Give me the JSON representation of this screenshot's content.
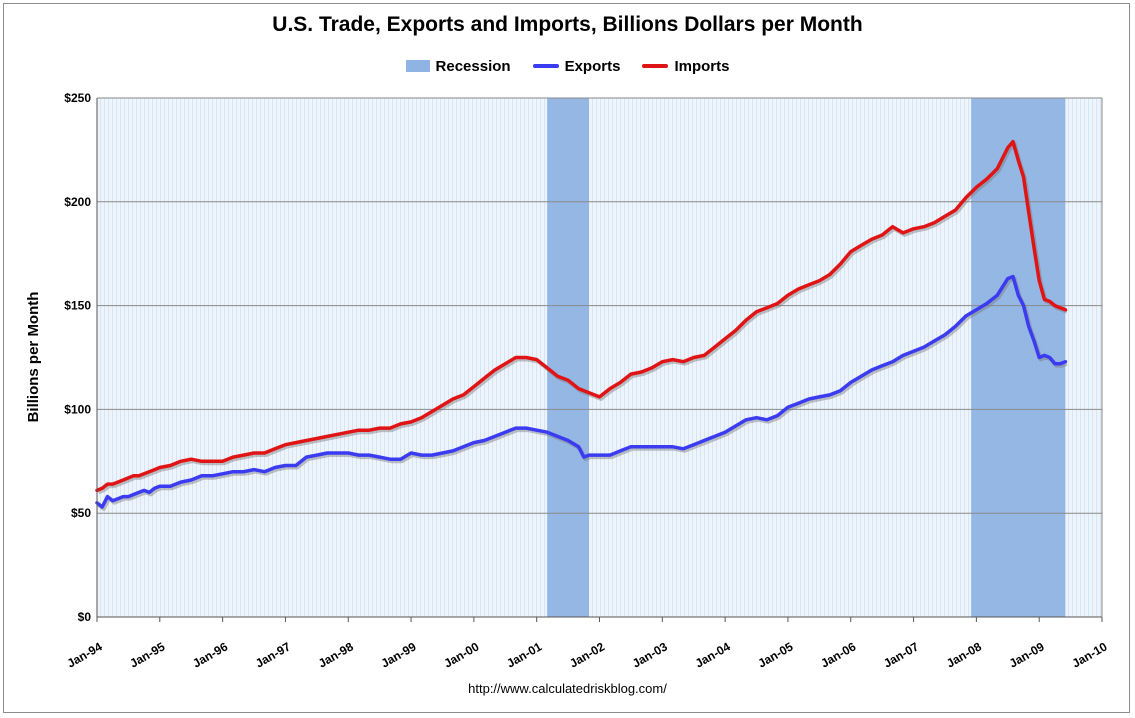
{
  "chart_data": {
    "type": "line",
    "title": "U.S. Trade, Exports and Imports, Billions Dollars per Month",
    "ylabel": "Billions per Month",
    "xlabel": "",
    "ylim": [
      0,
      250
    ],
    "xlim": [
      "1994-01",
      "2010-01"
    ],
    "y_ticks": [
      "$0",
      "$50",
      "$100",
      "$150",
      "$200",
      "$250"
    ],
    "y_tick_values": [
      0,
      50,
      100,
      150,
      200,
      250
    ],
    "x_ticks": [
      "Jan-94",
      "Jan-95",
      "Jan-96",
      "Jan-97",
      "Jan-98",
      "Jan-99",
      "Jan-00",
      "Jan-01",
      "Jan-02",
      "Jan-03",
      "Jan-04",
      "Jan-05",
      "Jan-06",
      "Jan-07",
      "Jan-08",
      "Jan-09",
      "Jan-10"
    ],
    "grid": true,
    "legend_position": "top-center",
    "recessions": [
      {
        "start": "2001-03",
        "end": "2001-11"
      },
      {
        "start": "2007-12",
        "end": "2009-06"
      }
    ],
    "legend": [
      {
        "label": "Recession",
        "kind": "box",
        "color": "#8fb3e3"
      },
      {
        "label": "Exports",
        "kind": "line",
        "color": "#3b3bf2"
      },
      {
        "label": "Imports",
        "kind": "line",
        "color": "#e01414"
      }
    ],
    "series": [
      {
        "name": "Exports",
        "color": "#3b3bf2",
        "points": [
          [
            "1994-01",
            55
          ],
          [
            "1994-02",
            53
          ],
          [
            "1994-03",
            58
          ],
          [
            "1994-04",
            56
          ],
          [
            "1994-05",
            57
          ],
          [
            "1994-06",
            58
          ],
          [
            "1994-07",
            58
          ],
          [
            "1994-08",
            59
          ],
          [
            "1994-09",
            60
          ],
          [
            "1994-10",
            61
          ],
          [
            "1994-11",
            60
          ],
          [
            "1994-12",
            62
          ],
          [
            "1995-01",
            63
          ],
          [
            "1995-03",
            63
          ],
          [
            "1995-05",
            65
          ],
          [
            "1995-07",
            66
          ],
          [
            "1995-09",
            68
          ],
          [
            "1995-11",
            68
          ],
          [
            "1996-01",
            69
          ],
          [
            "1996-03",
            70
          ],
          [
            "1996-05",
            70
          ],
          [
            "1996-07",
            71
          ],
          [
            "1996-09",
            70
          ],
          [
            "1996-11",
            72
          ],
          [
            "1997-01",
            73
          ],
          [
            "1997-03",
            73
          ],
          [
            "1997-05",
            77
          ],
          [
            "1997-07",
            78
          ],
          [
            "1997-09",
            79
          ],
          [
            "1997-11",
            79
          ],
          [
            "1998-01",
            79
          ],
          [
            "1998-03",
            78
          ],
          [
            "1998-05",
            78
          ],
          [
            "1998-07",
            77
          ],
          [
            "1998-09",
            76
          ],
          [
            "1998-11",
            76
          ],
          [
            "1999-01",
            79
          ],
          [
            "1999-03",
            78
          ],
          [
            "1999-05",
            78
          ],
          [
            "1999-07",
            79
          ],
          [
            "1999-09",
            80
          ],
          [
            "1999-11",
            82
          ],
          [
            "2000-01",
            84
          ],
          [
            "2000-03",
            85
          ],
          [
            "2000-05",
            87
          ],
          [
            "2000-07",
            89
          ],
          [
            "2000-09",
            91
          ],
          [
            "2000-11",
            91
          ],
          [
            "2001-01",
            90
          ],
          [
            "2001-03",
            89
          ],
          [
            "2001-05",
            87
          ],
          [
            "2001-07",
            85
          ],
          [
            "2001-09",
            82
          ],
          [
            "2001-10",
            77
          ],
          [
            "2001-11",
            78
          ],
          [
            "2002-01",
            78
          ],
          [
            "2002-03",
            78
          ],
          [
            "2002-05",
            80
          ],
          [
            "2002-07",
            82
          ],
          [
            "2002-09",
            82
          ],
          [
            "2002-11",
            82
          ],
          [
            "2003-01",
            82
          ],
          [
            "2003-03",
            82
          ],
          [
            "2003-05",
            81
          ],
          [
            "2003-07",
            83
          ],
          [
            "2003-09",
            85
          ],
          [
            "2003-11",
            87
          ],
          [
            "2004-01",
            89
          ],
          [
            "2004-03",
            92
          ],
          [
            "2004-05",
            95
          ],
          [
            "2004-07",
            96
          ],
          [
            "2004-09",
            95
          ],
          [
            "2004-11",
            97
          ],
          [
            "2005-01",
            101
          ],
          [
            "2005-03",
            103
          ],
          [
            "2005-05",
            105
          ],
          [
            "2005-07",
            106
          ],
          [
            "2005-09",
            107
          ],
          [
            "2005-11",
            109
          ],
          [
            "2006-01",
            113
          ],
          [
            "2006-03",
            116
          ],
          [
            "2006-05",
            119
          ],
          [
            "2006-07",
            121
          ],
          [
            "2006-09",
            123
          ],
          [
            "2006-11",
            126
          ],
          [
            "2007-01",
            128
          ],
          [
            "2007-03",
            130
          ],
          [
            "2007-05",
            133
          ],
          [
            "2007-07",
            136
          ],
          [
            "2007-09",
            140
          ],
          [
            "2007-11",
            145
          ],
          [
            "2008-01",
            148
          ],
          [
            "2008-03",
            151
          ],
          [
            "2008-05",
            155
          ],
          [
            "2008-07",
            163
          ],
          [
            "2008-08",
            164
          ],
          [
            "2008-09",
            155
          ],
          [
            "2008-10",
            150
          ],
          [
            "2008-11",
            140
          ],
          [
            "2008-12",
            133
          ],
          [
            "2009-01",
            125
          ],
          [
            "2009-02",
            126
          ],
          [
            "2009-03",
            125
          ],
          [
            "2009-04",
            122
          ],
          [
            "2009-05",
            122
          ],
          [
            "2009-06",
            123
          ]
        ]
      },
      {
        "name": "Imports",
        "color": "#e01414",
        "points": [
          [
            "1994-01",
            61
          ],
          [
            "1994-02",
            62
          ],
          [
            "1994-03",
            64
          ],
          [
            "1994-04",
            64
          ],
          [
            "1994-05",
            65
          ],
          [
            "1994-06",
            66
          ],
          [
            "1994-07",
            67
          ],
          [
            "1994-08",
            68
          ],
          [
            "1994-09",
            68
          ],
          [
            "1994-10",
            69
          ],
          [
            "1994-11",
            70
          ],
          [
            "1994-12",
            71
          ],
          [
            "1995-01",
            72
          ],
          [
            "1995-03",
            73
          ],
          [
            "1995-05",
            75
          ],
          [
            "1995-07",
            76
          ],
          [
            "1995-09",
            75
          ],
          [
            "1995-11",
            75
          ],
          [
            "1996-01",
            75
          ],
          [
            "1996-03",
            77
          ],
          [
            "1996-05",
            78
          ],
          [
            "1996-07",
            79
          ],
          [
            "1996-09",
            79
          ],
          [
            "1996-11",
            81
          ],
          [
            "1997-01",
            83
          ],
          [
            "1997-03",
            84
          ],
          [
            "1997-05",
            85
          ],
          [
            "1997-07",
            86
          ],
          [
            "1997-09",
            87
          ],
          [
            "1997-11",
            88
          ],
          [
            "1998-01",
            89
          ],
          [
            "1998-03",
            90
          ],
          [
            "1998-05",
            90
          ],
          [
            "1998-07",
            91
          ],
          [
            "1998-09",
            91
          ],
          [
            "1998-11",
            93
          ],
          [
            "1999-01",
            94
          ],
          [
            "1999-03",
            96
          ],
          [
            "1999-05",
            99
          ],
          [
            "1999-07",
            102
          ],
          [
            "1999-09",
            105
          ],
          [
            "1999-11",
            107
          ],
          [
            "2000-01",
            111
          ],
          [
            "2000-03",
            115
          ],
          [
            "2000-05",
            119
          ],
          [
            "2000-07",
            122
          ],
          [
            "2000-09",
            125
          ],
          [
            "2000-11",
            125
          ],
          [
            "2001-01",
            124
          ],
          [
            "2001-03",
            120
          ],
          [
            "2001-05",
            116
          ],
          [
            "2001-07",
            114
          ],
          [
            "2001-09",
            110
          ],
          [
            "2001-11",
            108
          ],
          [
            "2002-01",
            106
          ],
          [
            "2002-03",
            110
          ],
          [
            "2002-05",
            113
          ],
          [
            "2002-07",
            117
          ],
          [
            "2002-09",
            118
          ],
          [
            "2002-11",
            120
          ],
          [
            "2003-01",
            123
          ],
          [
            "2003-03",
            124
          ],
          [
            "2003-05",
            123
          ],
          [
            "2003-07",
            125
          ],
          [
            "2003-09",
            126
          ],
          [
            "2003-11",
            130
          ],
          [
            "2004-01",
            134
          ],
          [
            "2004-03",
            138
          ],
          [
            "2004-05",
            143
          ],
          [
            "2004-07",
            147
          ],
          [
            "2004-09",
            149
          ],
          [
            "2004-11",
            151
          ],
          [
            "2005-01",
            155
          ],
          [
            "2005-03",
            158
          ],
          [
            "2005-05",
            160
          ],
          [
            "2005-07",
            162
          ],
          [
            "2005-09",
            165
          ],
          [
            "2005-11",
            170
          ],
          [
            "2006-01",
            176
          ],
          [
            "2006-03",
            179
          ],
          [
            "2006-05",
            182
          ],
          [
            "2006-07",
            184
          ],
          [
            "2006-09",
            188
          ],
          [
            "2006-11",
            185
          ],
          [
            "2007-01",
            187
          ],
          [
            "2007-03",
            188
          ],
          [
            "2007-05",
            190
          ],
          [
            "2007-07",
            193
          ],
          [
            "2007-09",
            196
          ],
          [
            "2007-11",
            202
          ],
          [
            "2008-01",
            207
          ],
          [
            "2008-03",
            211
          ],
          [
            "2008-05",
            216
          ],
          [
            "2008-07",
            226
          ],
          [
            "2008-08",
            229
          ],
          [
            "2008-09",
            220
          ],
          [
            "2008-10",
            212
          ],
          [
            "2008-11",
            195
          ],
          [
            "2008-12",
            178
          ],
          [
            "2009-01",
            162
          ],
          [
            "2009-02",
            153
          ],
          [
            "2009-03",
            152
          ],
          [
            "2009-04",
            150
          ],
          [
            "2009-05",
            149
          ],
          [
            "2009-06",
            148
          ]
        ]
      }
    ]
  },
  "footer": {
    "url": "http://www.calculatedriskblog.com/"
  }
}
